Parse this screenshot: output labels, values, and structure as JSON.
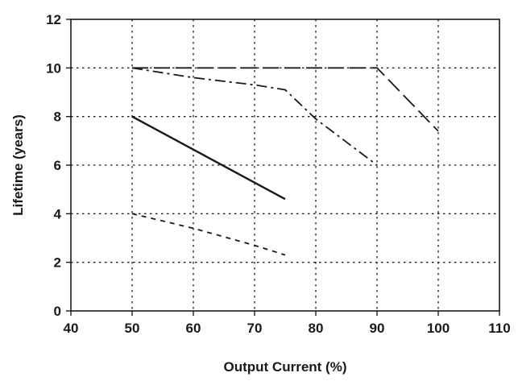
{
  "chart_data": {
    "type": "line",
    "title": "",
    "xlabel": "Output Current (%)",
    "ylabel": "Lifetime (years)",
    "xlim": [
      40,
      110
    ],
    "ylim": [
      0,
      12
    ],
    "x_ticks": [
      40,
      50,
      60,
      70,
      80,
      90,
      100,
      110
    ],
    "y_ticks": [
      0,
      2,
      4,
      6,
      8,
      10,
      12
    ],
    "x_tick_labels": [
      "40",
      "50",
      "60",
      "70",
      "80",
      "90",
      "100",
      "110"
    ],
    "y_tick_labels": [
      "0",
      "2",
      "4",
      "6",
      "8",
      "10",
      "12"
    ],
    "grid": true,
    "grid_style": "dotted",
    "legend": "none",
    "series": [
      {
        "line_style": "long-dash",
        "color": "#1a1a1a",
        "points": [
          [
            50,
            10
          ],
          [
            90,
            10
          ],
          [
            100,
            7.4
          ]
        ]
      },
      {
        "line_style": "dash-dot",
        "color": "#1a1a1a",
        "points": [
          [
            50,
            10
          ],
          [
            60,
            9.6
          ],
          [
            70,
            9.3
          ],
          [
            75,
            9.1
          ],
          [
            80,
            7.9
          ],
          [
            90,
            6.0
          ]
        ]
      },
      {
        "line_style": "solid",
        "color": "#1a1a1a",
        "points": [
          [
            50,
            8.0
          ],
          [
            75,
            4.6
          ]
        ]
      },
      {
        "line_style": "short-dash",
        "color": "#1a1a1a",
        "points": [
          [
            50,
            4.0
          ],
          [
            60,
            3.4
          ],
          [
            70,
            2.7
          ],
          [
            75,
            2.3
          ]
        ]
      }
    ]
  }
}
